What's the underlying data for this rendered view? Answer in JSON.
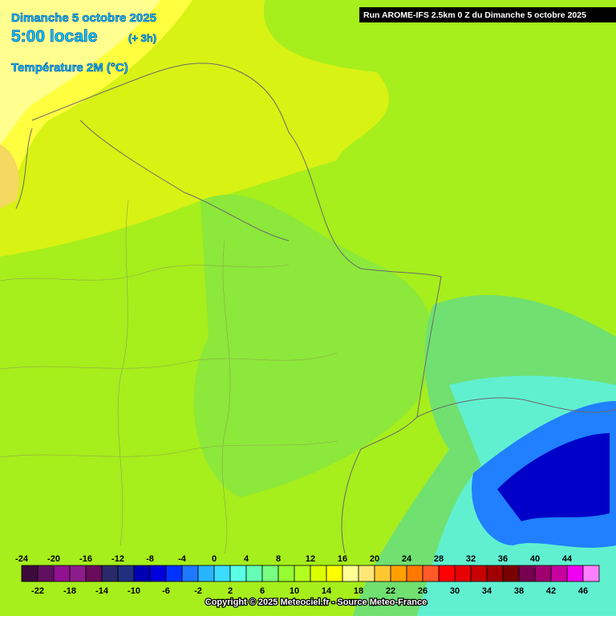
{
  "header": {
    "date": "Dimanche 5 octobre 2025",
    "time": "5:00 locale",
    "offset": "(+ 3h)",
    "parameter": "Température 2M (°C)",
    "run": "Run AROME-IFS 2.5km 0 Z du Dimanche 5 octobre 2025"
  },
  "legend": {
    "values": [
      -24,
      -22,
      -20,
      -18,
      -16,
      -14,
      -12,
      -10,
      -8,
      -6,
      -4,
      -2,
      0,
      2,
      4,
      6,
      8,
      10,
      12,
      14,
      16,
      18,
      20,
      22,
      24,
      26,
      28,
      30,
      32,
      34,
      36,
      38,
      40,
      42,
      44,
      46
    ],
    "colors": [
      "#3c0a3c",
      "#601060",
      "#901090",
      "#8c1c8c",
      "#6a0a5a",
      "#2a2a6a",
      "#203080",
      "#0000b4",
      "#0000dc",
      "#0032ff",
      "#1e78ff",
      "#28b4ff",
      "#3cdcff",
      "#5affe6",
      "#64ffb4",
      "#78ff82",
      "#96ff32",
      "#b4ff1e",
      "#dcff00",
      "#ffff00",
      "#ffff96",
      "#ffe678",
      "#ffc832",
      "#ffa000",
      "#ff7800",
      "#ff5a28",
      "#ff0000",
      "#e60000",
      "#c80000",
      "#a00000",
      "#780000",
      "#780050",
      "#a0006e",
      "#c800a0",
      "#f000f0",
      "#ff80ff"
    ]
  },
  "footer": {
    "copyright": "Copyright © 2025 Meteociel.fr - Source Meteo-France"
  }
}
